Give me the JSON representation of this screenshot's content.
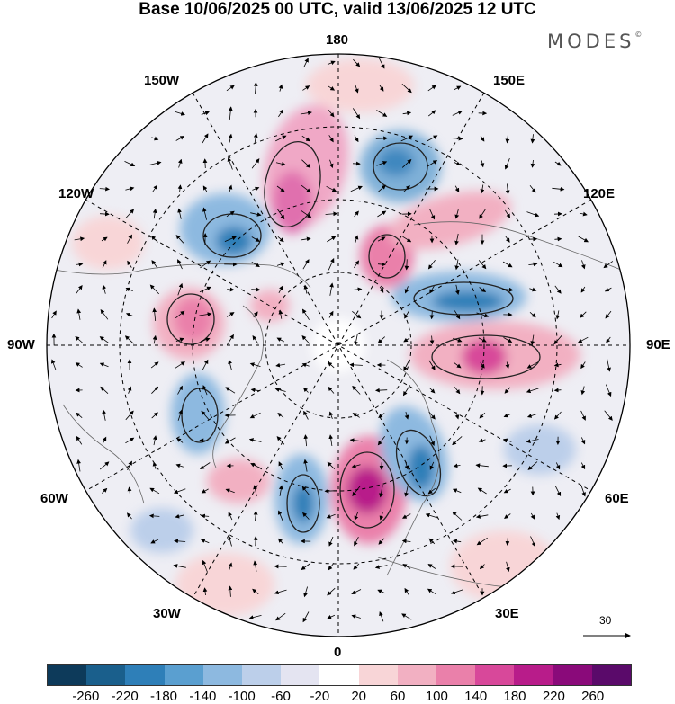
{
  "title": "Base 10/06/2025 00 UTC, valid 13/06/2025 12 UTC",
  "logo": {
    "text": "MODES",
    "mark": "©"
  },
  "map_labels": {
    "lon_180": "180",
    "lon_150W": "150W",
    "lon_150E": "150E",
    "lon_120W": "120W",
    "lon_120E": "120E",
    "lon_90W": "90W",
    "lon_90E": "90E",
    "lon_60W": "60W",
    "lon_60E": "60E",
    "lon_30W": "30W",
    "lon_30E": "30E",
    "lon_0": "0"
  },
  "wind_scale": {
    "label": "30"
  },
  "colorbar": {
    "colors": [
      "#0d3a5a",
      "#1a5f8c",
      "#2e7fb8",
      "#5a9fd0",
      "#8db9e0",
      "#bccfea",
      "#e4e4f1",
      "#ffffff",
      "#f8d5d7",
      "#f2b0c2",
      "#ea80aa",
      "#d8489a",
      "#b81c8a",
      "#8a0a7a",
      "#5a0a6a"
    ],
    "ticks": [
      "-260",
      "-220",
      "-180",
      "-140",
      "-100",
      "-60",
      "-20",
      "20",
      "60",
      "100",
      "140",
      "180",
      "220",
      "260"
    ]
  }
}
